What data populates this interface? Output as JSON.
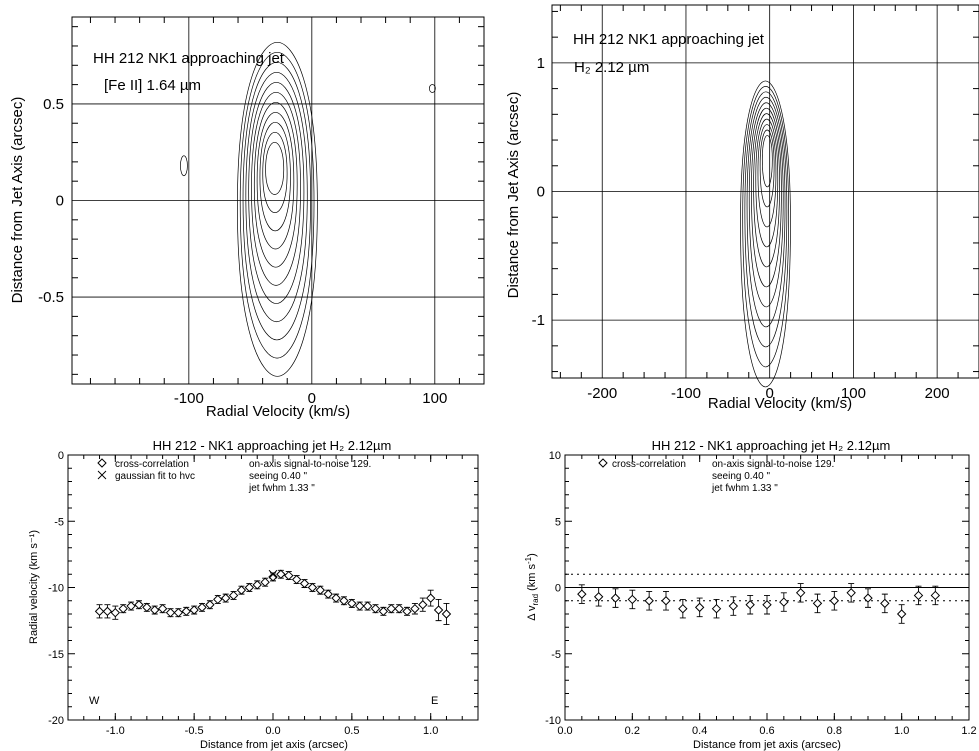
{
  "chart_data": [
    {
      "type": "contour",
      "title": "HH 212  NK1  approaching jet",
      "subtitle": "[Fe II]  1.64 µm",
      "xlabel": "Radial Velocity (km/s)",
      "ylabel": "Distance from Jet Axis (arcsec)",
      "xlim": [
        -195,
        140
      ],
      "ylim": [
        -0.95,
        0.95
      ],
      "xticks": [
        "-100",
        "0",
        "100"
      ],
      "yticks": [
        "0.5",
        "0",
        "-0.5"
      ],
      "grid": true,
      "peak": {
        "x": -28,
        "y": -0.03
      },
      "contour_levels": 11
    },
    {
      "type": "contour",
      "title": "HH 212  NK1  approaching jet",
      "subtitle": "H₂  2.12 µm",
      "xlabel": "Radial Velocity (km/s)",
      "ylabel": "Distance from  Jet Axis (arcsec)",
      "xlim": [
        -260,
        250
      ],
      "ylim": [
        -1.45,
        1.45
      ],
      "xticks": [
        "-200",
        "-100",
        "0",
        "100",
        "200"
      ],
      "yticks": [
        "1",
        "0",
        "-1"
      ],
      "grid": true,
      "peak": {
        "x": -5,
        "y": 0.3
      },
      "contour_levels": 11
    },
    {
      "type": "scatter",
      "title": "HH 212 - NK1 approaching jet   H₂ 2.12µm",
      "xlabel": "Distance from jet axis (arcsec)",
      "ylabel": "Radial velocity (km s⁻¹)",
      "xlim": [
        -1.3,
        1.3
      ],
      "ylim": [
        -20,
        0
      ],
      "xticks": [
        "-1.0",
        "-0.5",
        "0.0",
        "0.5",
        "1.0"
      ],
      "yticks": [
        "0",
        "-5",
        "-10",
        "-15",
        "-20"
      ],
      "legend": [
        "cross-correlation",
        "gaussian fit to hvc"
      ],
      "notes": [
        "on-axis signal-to-noise  129.",
        "seeing  0.40 \"",
        "jet fwhm  1.33 \""
      ],
      "corner_labels": [
        "W",
        "E"
      ],
      "series": [
        {
          "name": "cross-correlation",
          "x": [
            -1.1,
            -1.05,
            -1.0,
            -0.95,
            -0.9,
            -0.85,
            -0.8,
            -0.75,
            -0.7,
            -0.65,
            -0.6,
            -0.55,
            -0.5,
            -0.45,
            -0.4,
            -0.35,
            -0.3,
            -0.25,
            -0.2,
            -0.15,
            -0.1,
            -0.05,
            0.0,
            0.05,
            0.1,
            0.15,
            0.2,
            0.25,
            0.3,
            0.35,
            0.4,
            0.45,
            0.5,
            0.55,
            0.6,
            0.65,
            0.7,
            0.75,
            0.8,
            0.85,
            0.9,
            0.95,
            1.0,
            1.05,
            1.1
          ],
          "y": [
            -11.8,
            -11.8,
            -11.9,
            -11.6,
            -11.4,
            -11.3,
            -11.5,
            -11.7,
            -11.6,
            -11.9,
            -11.9,
            -11.8,
            -11.7,
            -11.5,
            -11.3,
            -10.9,
            -10.8,
            -10.6,
            -10.2,
            -10.0,
            -9.8,
            -9.6,
            -9.2,
            -9.0,
            -9.1,
            -9.4,
            -9.7,
            -10.0,
            -10.2,
            -10.5,
            -10.8,
            -11.0,
            -11.2,
            -11.4,
            -11.4,
            -11.6,
            -11.8,
            -11.6,
            -11.6,
            -11.8,
            -11.6,
            -11.3,
            -10.8,
            -11.7,
            -12.0
          ],
          "yerr": [
            0.5,
            0.5,
            0.5,
            0.3,
            0.3,
            0.3,
            0.3,
            0.3,
            0.3,
            0.3,
            0.3,
            0.3,
            0.3,
            0.3,
            0.3,
            0.3,
            0.3,
            0.3,
            0.3,
            0.3,
            0.3,
            0.3,
            0.3,
            0.3,
            0.3,
            0.3,
            0.3,
            0.3,
            0.3,
            0.3,
            0.3,
            0.3,
            0.3,
            0.3,
            0.3,
            0.3,
            0.3,
            0.3,
            0.3,
            0.3,
            0.4,
            0.5,
            0.6,
            0.8,
            0.8
          ]
        },
        {
          "name": "gaussian fit to hvc",
          "x": [
            0.0
          ],
          "y": [
            -9.0
          ]
        }
      ]
    },
    {
      "type": "scatter",
      "title": "HH 212 - NK1 approaching jet   H₂ 2.12µm",
      "xlabel": "Distance from jet axis (arcsec)",
      "ylabel": "Δ v_rad (km s⁻¹)",
      "xlim": [
        0.0,
        1.2
      ],
      "ylim": [
        -10,
        10
      ],
      "xticks": [
        "0.0",
        "0.2",
        "0.4",
        "0.6",
        "0.8",
        "1.0",
        "1.2"
      ],
      "yticks": [
        "10",
        "5",
        "0",
        "-5",
        "-10"
      ],
      "legend": [
        "cross-correlation"
      ],
      "notes": [
        "on-axis signal-to-noise  129.",
        "seeing  0.40 \"",
        "jet fwhm  1.33 \""
      ],
      "reference_lines": [
        1.0,
        0.0,
        -1.0
      ],
      "series": [
        {
          "name": "cross-correlation",
          "x": [
            0.05,
            0.1,
            0.15,
            0.2,
            0.25,
            0.3,
            0.35,
            0.4,
            0.45,
            0.5,
            0.55,
            0.6,
            0.65,
            0.7,
            0.75,
            0.8,
            0.85,
            0.9,
            0.95,
            1.0,
            1.05,
            1.1
          ],
          "y": [
            -0.5,
            -0.7,
            -0.8,
            -0.9,
            -1.0,
            -1.0,
            -1.6,
            -1.5,
            -1.6,
            -1.4,
            -1.3,
            -1.3,
            -1.1,
            -0.4,
            -1.2,
            -1.0,
            -0.4,
            -0.8,
            -1.2,
            -2.0,
            -0.6,
            -0.6
          ],
          "yerr": [
            0.7,
            0.7,
            0.7,
            0.7,
            0.7,
            0.7,
            0.7,
            0.7,
            0.7,
            0.7,
            0.7,
            0.7,
            0.7,
            0.7,
            0.7,
            0.7,
            0.7,
            0.7,
            0.7,
            0.7,
            0.7,
            0.7
          ]
        }
      ]
    }
  ]
}
